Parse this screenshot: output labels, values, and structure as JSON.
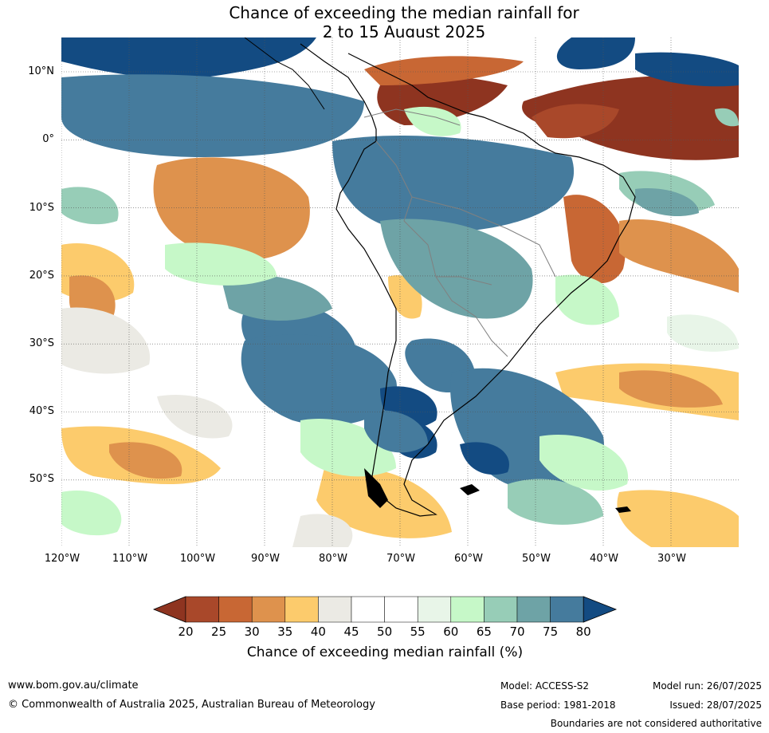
{
  "title": {
    "line1": "Chance of exceeding the median rainfall for",
    "line2": "2 to 15 August 2025"
  },
  "map": {
    "region": "South America",
    "lat_labels": [
      "10°N",
      "0°",
      "10°S",
      "20°S",
      "30°S",
      "40°S",
      "50°S"
    ],
    "lon_labels": [
      "120°W",
      "110°W",
      "100°W",
      "90°W",
      "80°W",
      "70°W",
      "60°W",
      "50°W",
      "40°W",
      "30°W"
    ],
    "colors": {
      "c20": "#8e3420",
      "c25": "#a9482a",
      "c30": "#c86734",
      "c35": "#de924d",
      "c40": "#fccb6c",
      "c45": "#ebeae4",
      "c50": "#ffffff",
      "c55": "#ffffff",
      "c60": "#e8f5e8",
      "c65": "#c6f8c8",
      "c70": "#97cdb7",
      "c75": "#6ea3a6",
      "c80": "#457b9d",
      "c85": "#134b82",
      "coast": "#000000",
      "border": "#808080",
      "grid": "#555555"
    }
  },
  "colorbar": {
    "ticks": [
      "20",
      "25",
      "30",
      "35",
      "40",
      "45",
      "50",
      "55",
      "60",
      "65",
      "70",
      "75",
      "80"
    ],
    "label": "Chance of exceeding median rainfall (%)"
  },
  "footer": {
    "website": "www.bom.gov.au/climate",
    "copyright": "© Commonwealth of Australia 2025, Australian Bureau of Meteorology",
    "model": "Model: ACCESS-S2",
    "base_period": "Base period: 1981-2018",
    "model_run": "Model run: 26/07/2025",
    "issued": "Issued: 28/07/2025",
    "disclaimer": "Boundaries are not considered authoritative"
  }
}
